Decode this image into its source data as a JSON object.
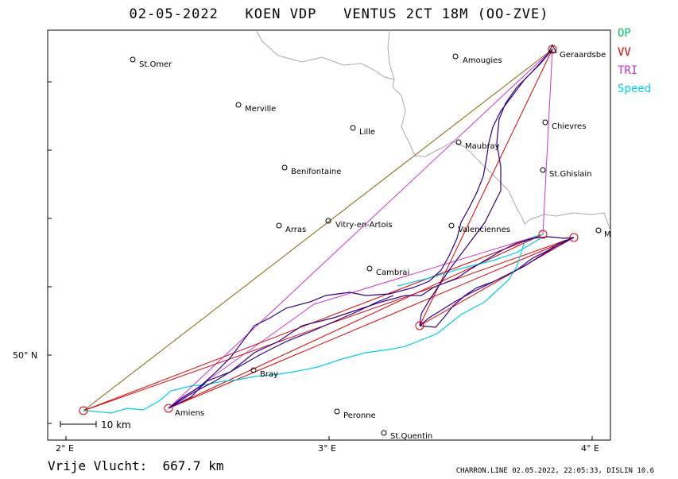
{
  "title": "02-05-2022   KOEN VDP   VENTUS 2CT 18M (OO-ZVE)",
  "legend": [
    {
      "label": "OP",
      "color": "#00c070"
    },
    {
      "label": "VV",
      "color": "#dd0000"
    },
    {
      "label": "TRI",
      "color": "#cc33cc"
    },
    {
      "label": "Speed",
      "color": "#00ccee"
    }
  ],
  "cities": [
    {
      "name": "St.Omer"
    },
    {
      "name": "Amougies"
    },
    {
      "name": "Geraardsbe"
    },
    {
      "name": "Merville"
    },
    {
      "name": "Lille"
    },
    {
      "name": "Chievres"
    },
    {
      "name": "Maubray"
    },
    {
      "name": "Benifontaine"
    },
    {
      "name": "St.Ghislain"
    },
    {
      "name": "Vitry-en-Artois"
    },
    {
      "name": "Arras"
    },
    {
      "name": "Valenciennes"
    },
    {
      "name": "M"
    },
    {
      "name": "Cambrai"
    },
    {
      "name": "Bray"
    },
    {
      "name": "Amiens"
    },
    {
      "name": "Peronne"
    },
    {
      "name": "St.Quentin"
    }
  ],
  "axes": {
    "x_ticks": [
      "2° E",
      "3° E",
      "4° E"
    ],
    "y_ticks": [
      "50° N"
    ]
  },
  "scale_bar": "10 km",
  "distance": "Vrije Vlucht:  667.7 km",
  "footer": "CHARRON.LINE 02.05.2022, 22:05:33, DISLIN 10.6",
  "colors": {
    "track": "#330088",
    "vv": "#dd0000",
    "tri": "#cc33cc",
    "op": "#886600",
    "speed": "#00ccee",
    "border": "#aaaaaa"
  }
}
